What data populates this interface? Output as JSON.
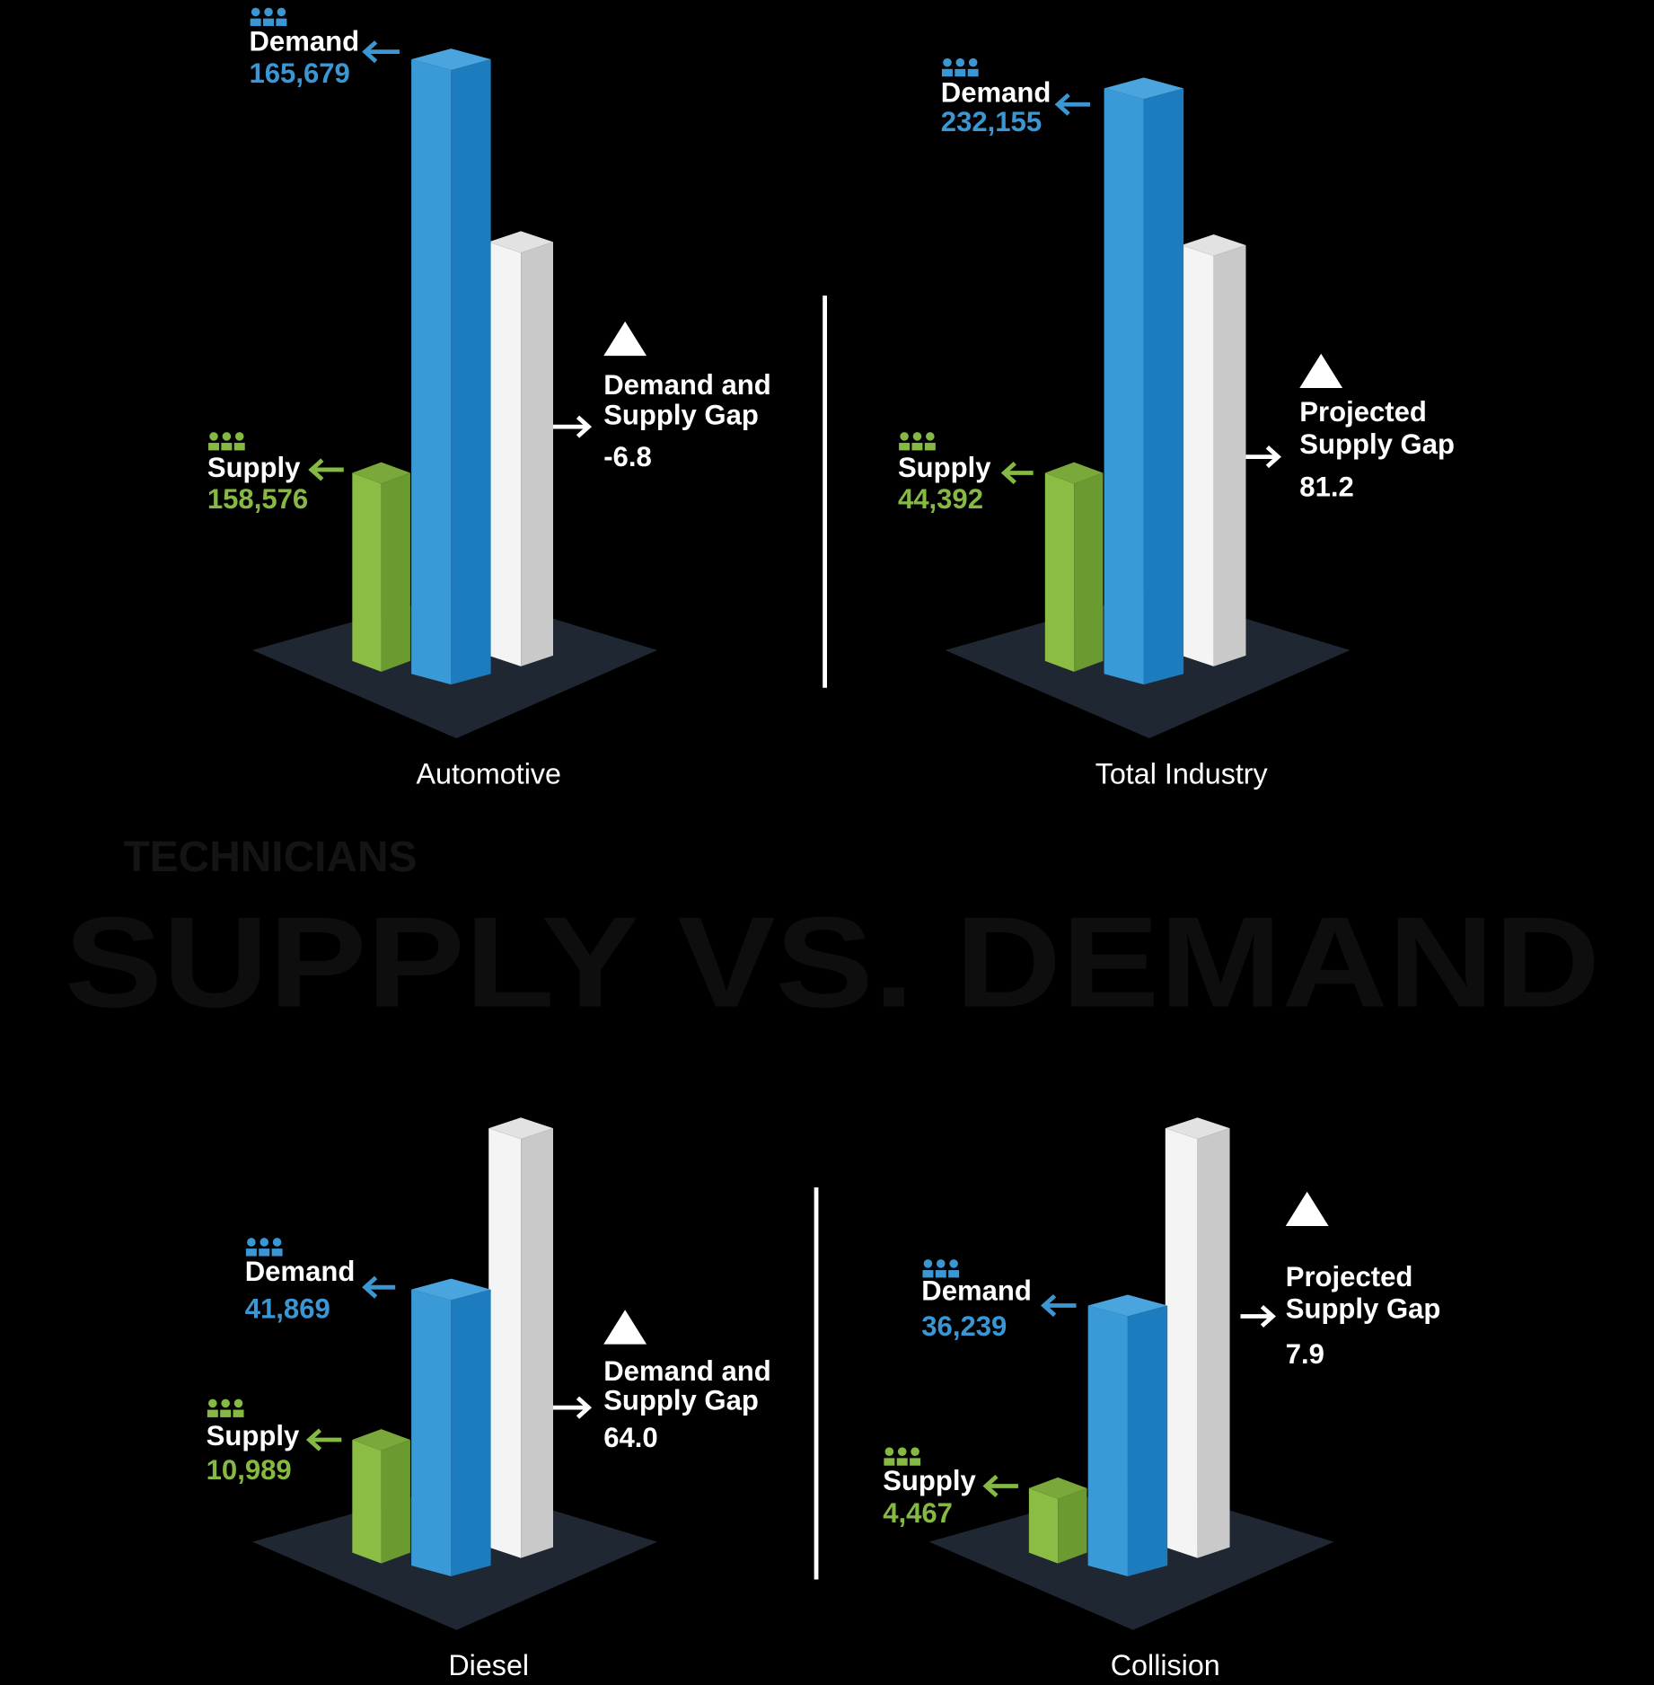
{
  "header": {
    "kicker": "TECHNICIANS",
    "title": "SUPPLY VS. DEMAND"
  },
  "panels": [
    {
      "category": "Automotive",
      "demand": {
        "label": "Demand",
        "value": "165,679"
      },
      "supply": {
        "label": "Supply",
        "value": "158,576"
      },
      "gap": {
        "label": [
          "Demand and",
          "Supply Gap"
        ],
        "value": "-6.8"
      }
    },
    {
      "category": "Total Industry",
      "demand": {
        "label": "Demand",
        "value": "232,155"
      },
      "supply": {
        "label": "Supply",
        "value": "44,392"
      },
      "gap": {
        "label": [
          "Projected",
          "Supply Gap"
        ],
        "value": "81.2"
      }
    },
    {
      "category": "Diesel",
      "demand": {
        "label": "Demand",
        "value": "41,869"
      },
      "supply": {
        "label": "Supply",
        "value": "10,989"
      },
      "gap": {
        "label": [
          "Demand and",
          "Supply Gap"
        ],
        "value": "64.0"
      }
    },
    {
      "category": "Collision",
      "demand": {
        "label": "Demand",
        "value": "36,239"
      },
      "supply": {
        "label": "Supply",
        "value": "4,467"
      },
      "gap": {
        "label": [
          "Projected",
          "Supply Gap"
        ],
        "value": "7.9"
      }
    }
  ]
}
